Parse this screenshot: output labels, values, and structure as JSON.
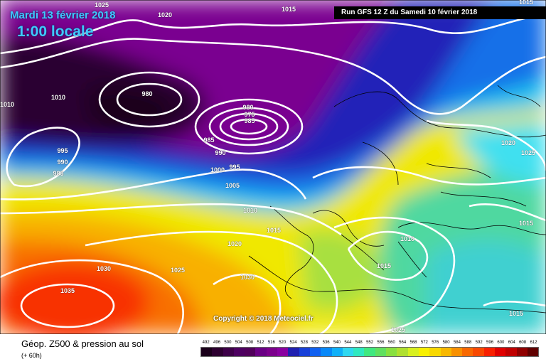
{
  "header": {
    "date": "Mardi 13 février 2018",
    "time": "1:00 locale",
    "run": "Run GFS 12 Z du Samedi 10 février 2018"
  },
  "copyright": "Copyright © 2018 Meteociel.fr",
  "footer": {
    "title": "Géop. Z500 & pression au sol",
    "subtitle": "(+ 60h)"
  },
  "legend": {
    "values": [
      "492",
      "496",
      "500",
      "504",
      "508",
      "512",
      "516",
      "520",
      "524",
      "528",
      "532",
      "536",
      "540",
      "544",
      "548",
      "552",
      "556",
      "560",
      "564",
      "568",
      "572",
      "576",
      "580",
      "584",
      "588",
      "592",
      "596",
      "600",
      "604",
      "608",
      "612"
    ],
    "colors": [
      "#1a001a",
      "#2d0030",
      "#3d0048",
      "#4d0060",
      "#50005a",
      "#6a0084",
      "#7c008c",
      "#8a00a0",
      "#2020b0",
      "#1840d8",
      "#1060f0",
      "#0888f8",
      "#10b0f8",
      "#30d8f0",
      "#30e8c0",
      "#40e880",
      "#60e060",
      "#88e040",
      "#b0e030",
      "#d8f020",
      "#f8f000",
      "#f8d800",
      "#f8b800",
      "#f89000",
      "#f86800",
      "#f84800",
      "#f82000",
      "#e00000",
      "#c00000",
      "#900000",
      "#600000"
    ]
  },
  "pressure_labels": [
    "1025",
    "1020",
    "1015",
    "1015",
    "1010",
    "1010",
    "980",
    "985",
    "995",
    "990",
    "985",
    "990",
    "1000",
    "995",
    "1005",
    "980",
    "975",
    "985",
    "1010",
    "1015",
    "1020",
    "1025",
    "1020",
    "1025",
    "1015",
    "1010",
    "1015",
    "1030",
    "1035",
    "1025",
    "1030",
    "1015",
    "1025"
  ]
}
